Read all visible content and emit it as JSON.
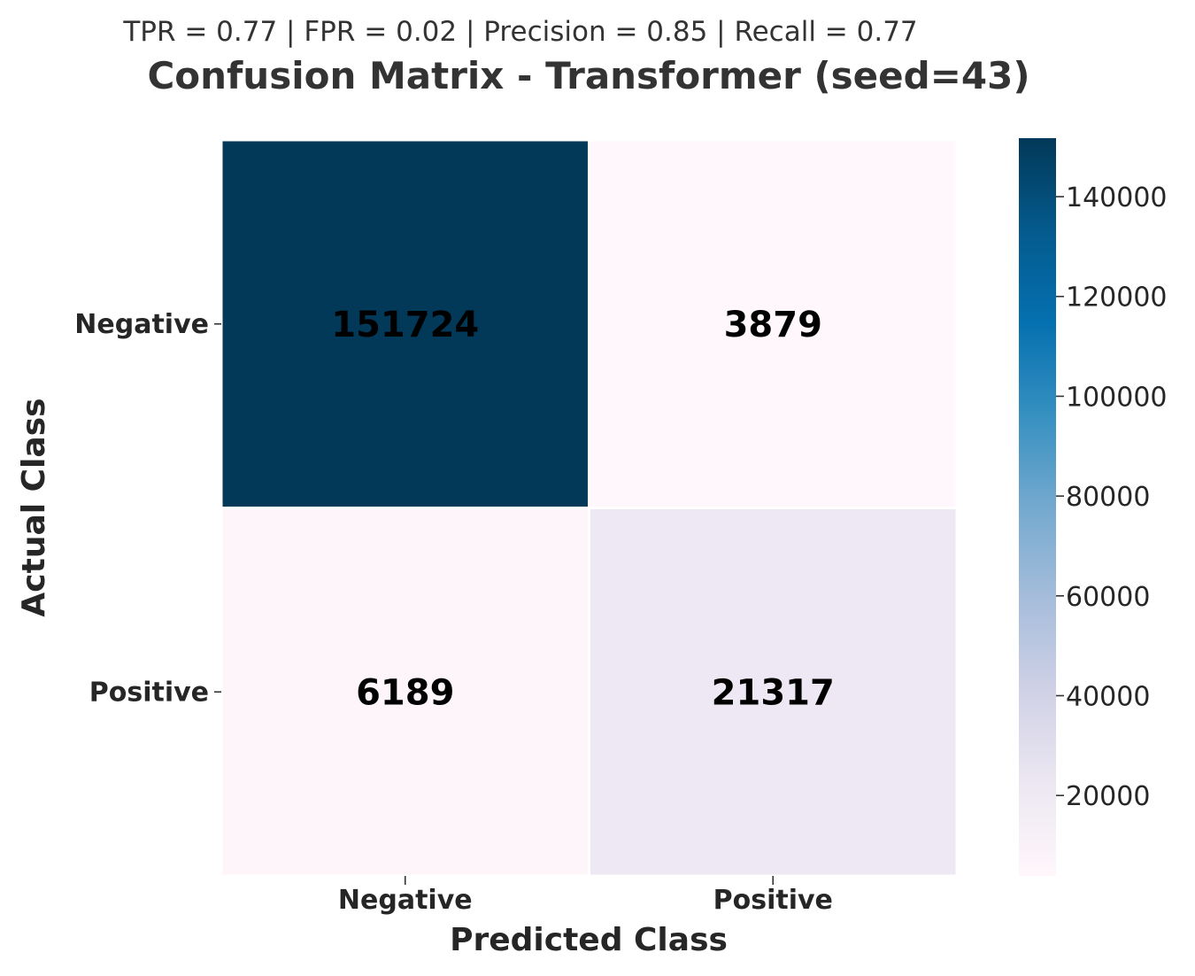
{
  "chart_data": {
    "type": "heatmap",
    "subtitle": "TPR = 0.77 | FPR = 0.02 | Precision = 0.85 | Recall = 0.77",
    "title": "Confusion Matrix - Transformer (seed=43)",
    "xlabel": "Predicted Class",
    "ylabel": "Actual Class",
    "x_categories": [
      "Negative",
      "Positive"
    ],
    "y_categories": [
      "Negative",
      "Positive"
    ],
    "values": [
      [
        151724,
        3879
      ],
      [
        6189,
        21317
      ]
    ],
    "colorbar": {
      "min": 3879,
      "max": 151724,
      "ticks": [
        20000,
        40000,
        60000,
        80000,
        100000,
        120000,
        140000
      ],
      "colors": [
        "#fff7fb",
        "#ece7f2",
        "#d0d1e6",
        "#a6bddb",
        "#74a9cf",
        "#3690c0",
        "#0570b0",
        "#045a8d",
        "#023858"
      ]
    }
  }
}
